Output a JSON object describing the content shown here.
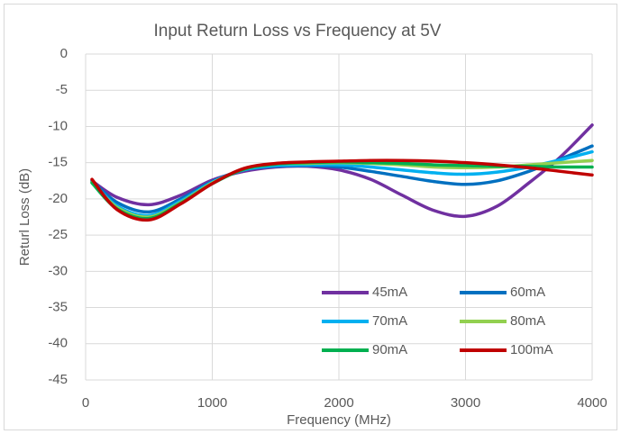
{
  "chart_data": {
    "type": "line",
    "title": "Input Return Loss vs Frequency at 5V",
    "xlabel": "Frequency (MHz)",
    "ylabel": "Returl Loss (dB)",
    "x": [
      50,
      250,
      500,
      750,
      1000,
      1250,
      1500,
      1750,
      2000,
      2250,
      2500,
      2750,
      3000,
      3250,
      3500,
      3750,
      4000
    ],
    "series": [
      {
        "name": "45mA",
        "color": "#7030a0",
        "values": [
          -17.5,
          -19.8,
          -20.8,
          -19.5,
          -17.4,
          -16.2,
          -15.6,
          -15.5,
          -16.0,
          -17.3,
          -19.5,
          -21.6,
          -22.4,
          -21.0,
          -17.8,
          -14.2,
          -9.8
        ]
      },
      {
        "name": "60mA",
        "color": "#0070c0",
        "values": [
          -17.5,
          -20.5,
          -21.8,
          -20.0,
          -17.6,
          -16.0,
          -15.5,
          -15.4,
          -15.6,
          -16.2,
          -16.9,
          -17.6,
          -18.0,
          -17.5,
          -16.2,
          -14.5,
          -12.7
        ]
      },
      {
        "name": "70mA",
        "color": "#00b0f0",
        "values": [
          -17.6,
          -21.0,
          -22.3,
          -20.3,
          -17.7,
          -16.0,
          -15.4,
          -15.3,
          -15.3,
          -15.6,
          -16.0,
          -16.4,
          -16.6,
          -16.3,
          -15.6,
          -14.6,
          -13.5
        ]
      },
      {
        "name": "80mA",
        "color": "#92d050",
        "values": [
          -17.7,
          -21.2,
          -22.5,
          -20.5,
          -17.8,
          -15.9,
          -15.2,
          -15.1,
          -15.0,
          -15.1,
          -15.3,
          -15.6,
          -15.7,
          -15.6,
          -15.3,
          -15.0,
          -14.7
        ]
      },
      {
        "name": "90mA",
        "color": "#00b050",
        "values": [
          -17.8,
          -21.4,
          -22.7,
          -20.6,
          -17.9,
          -15.9,
          -15.2,
          -15.0,
          -14.9,
          -15.0,
          -15.1,
          -15.3,
          -15.4,
          -15.5,
          -15.5,
          -15.6,
          -15.6
        ]
      },
      {
        "name": "100mA",
        "color": "#c00000",
        "values": [
          -17.3,
          -21.5,
          -22.9,
          -20.7,
          -17.9,
          -15.8,
          -15.1,
          -14.9,
          -14.8,
          -14.7,
          -14.7,
          -14.8,
          -15.0,
          -15.3,
          -15.7,
          -16.2,
          -16.7
        ]
      }
    ],
    "xlim": [
      0,
      4000
    ],
    "xticks": [
      0,
      1000,
      2000,
      3000,
      4000
    ],
    "ylim": [
      -45,
      0
    ],
    "yticks": [
      0,
      -5,
      -10,
      -15,
      -20,
      -25,
      -30,
      -35,
      -40,
      -45
    ],
    "grid": true,
    "legend": "lower right"
  }
}
